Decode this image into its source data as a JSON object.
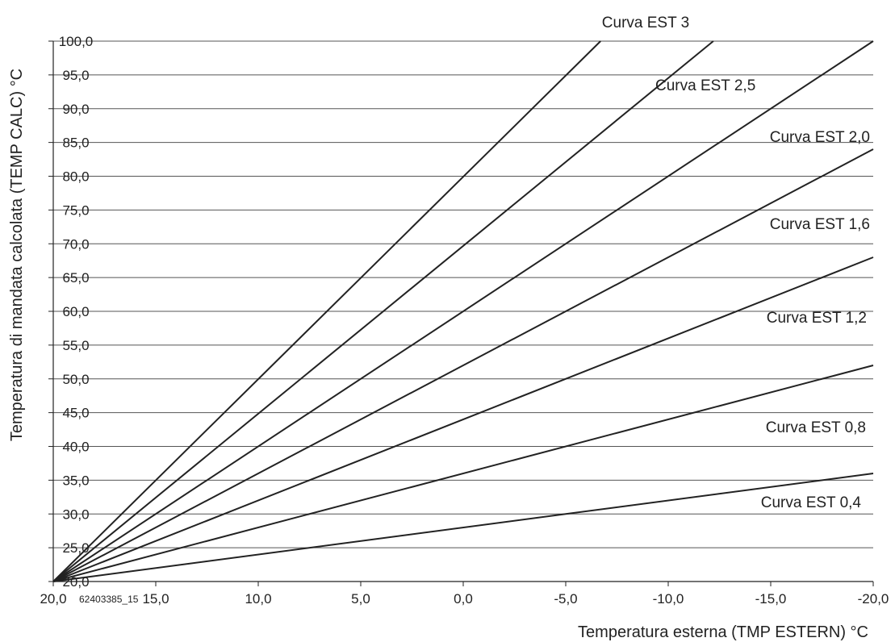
{
  "chart_data": {
    "type": "line",
    "xlabel": "Temperatura esterna (TMP ESTERN) °C",
    "ylabel": "Temperatura di mandata calcolata (TEMP CALC) °C",
    "xlim": [
      20,
      -20
    ],
    "ylim": [
      20,
      100
    ],
    "x_reversed": true,
    "grid": "horizontal",
    "x_ticks": [
      20,
      15,
      10,
      5,
      0,
      -5,
      -10,
      -15,
      -20
    ],
    "x_tick_labels": [
      "20,0",
      "15,0",
      "10,0",
      "5,0",
      "0,0",
      "-5,0",
      "-10,0",
      "-15,0",
      "-20,0"
    ],
    "y_ticks": [
      20,
      25,
      30,
      35,
      40,
      45,
      50,
      55,
      60,
      65,
      70,
      75,
      80,
      85,
      90,
      95,
      100
    ],
    "y_tick_labels": [
      "20,0",
      "25,0",
      "30,0",
      "35,0",
      "40,0",
      "45,0",
      "50,0",
      "55,0",
      "60,0",
      "65,0",
      "70,0",
      "75,0",
      "80,0",
      "85,0",
      "90,0",
      "95,0",
      "100,0"
    ],
    "series": [
      {
        "name": "Curva EST 3",
        "x": [
          20,
          -6.7
        ],
        "y": [
          20,
          100
        ]
      },
      {
        "name": "Curva EST 2,5",
        "x": [
          20,
          -12.2
        ],
        "y": [
          20,
          100
        ]
      },
      {
        "name": "Curva EST 2,0",
        "x": [
          20,
          -20
        ],
        "y": [
          20,
          100
        ]
      },
      {
        "name": "Curva EST 1,6",
        "x": [
          20,
          -20
        ],
        "y": [
          20,
          84
        ]
      },
      {
        "name": "Curva EST 1,2",
        "x": [
          20,
          -20
        ],
        "y": [
          20,
          68
        ]
      },
      {
        "name": "Curva EST 0,8",
        "x": [
          20,
          -20
        ],
        "y": [
          20,
          52
        ]
      },
      {
        "name": "Curva EST 0,4",
        "x": [
          20,
          -20
        ],
        "y": [
          20,
          36
        ]
      }
    ]
  },
  "figure_code": "62403385_15"
}
